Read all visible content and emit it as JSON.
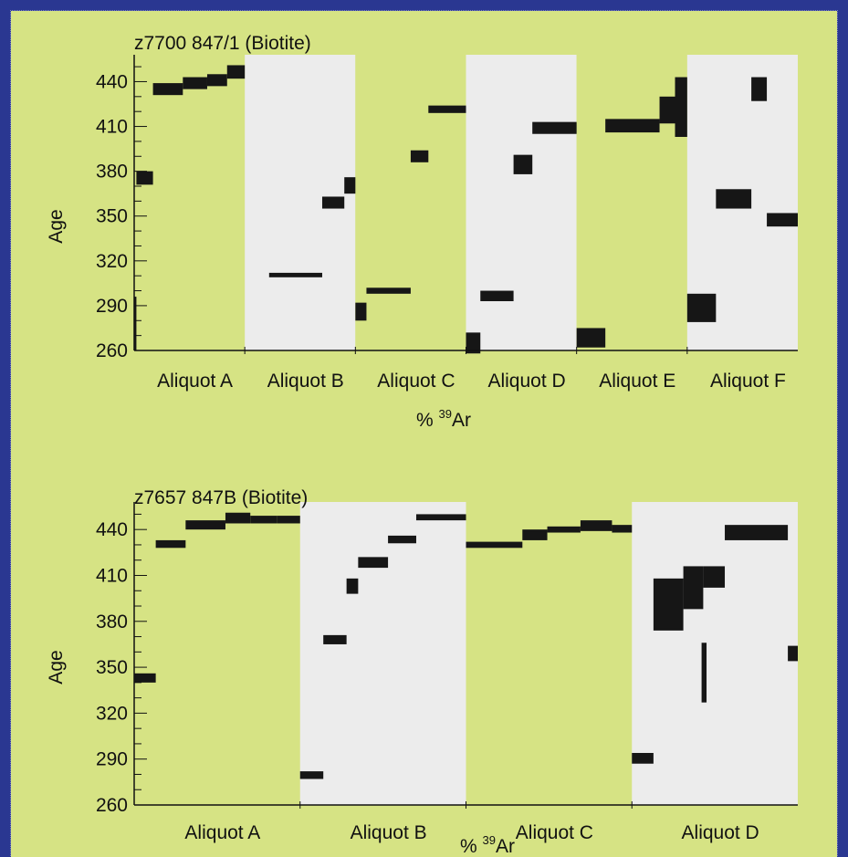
{
  "colors": {
    "border": "#2a3791",
    "background": "#d6e384",
    "band_light": "#ececec",
    "band_green": "#d6e384",
    "bar": "#161616"
  },
  "chart_data": [
    {
      "type": "step-heating age spectrum",
      "title": "z7700 847/1 (Biotite)",
      "ylabel": "Age",
      "xlabel_prefix": "% ",
      "xlabel_sup": "39",
      "xlabel_suffix": "Ar",
      "ylim": [
        260,
        458
      ],
      "yticks": [
        260,
        290,
        320,
        350,
        380,
        410,
        440
      ],
      "ytick_labels": [
        "260",
        "290",
        "320",
        "350",
        "380",
        "410",
        "440"
      ],
      "categories": [
        "Aliquot A",
        "Aliquot B",
        "Aliquot C",
        "Aliquot D",
        "Aliquot E",
        "Aliquot F"
      ],
      "category_labels": [
        "Aliquot A",
        "Aliquot B",
        "Aliquot C",
        "Aliquot D",
        "Aliquot E",
        "Aliquot F"
      ],
      "band_shading": [
        "green",
        "light",
        "green",
        "light",
        "green",
        "light"
      ],
      "steps": [
        {
          "aliquot": 0,
          "x0": 0.0,
          "x1": 0.02,
          "age_low": 260,
          "age_high": 296
        },
        {
          "aliquot": 0,
          "x0": 0.02,
          "x1": 0.17,
          "age_low": 371,
          "age_high": 380
        },
        {
          "aliquot": 0,
          "x0": 0.17,
          "x1": 0.44,
          "age_low": 431,
          "age_high": 439
        },
        {
          "aliquot": 0,
          "x0": 0.44,
          "x1": 0.66,
          "age_low": 435,
          "age_high": 443
        },
        {
          "aliquot": 0,
          "x0": 0.66,
          "x1": 0.84,
          "age_low": 437,
          "age_high": 445
        },
        {
          "aliquot": 0,
          "x0": 0.84,
          "x1": 1.0,
          "age_low": 442,
          "age_high": 451
        },
        {
          "aliquot": 1,
          "x0": 0.22,
          "x1": 0.7,
          "age_low": 309,
          "age_high": 312
        },
        {
          "aliquot": 1,
          "x0": 0.7,
          "x1": 0.9,
          "age_low": 355,
          "age_high": 363
        },
        {
          "aliquot": 1,
          "x0": 0.9,
          "x1": 1.0,
          "age_low": 365,
          "age_high": 376
        },
        {
          "aliquot": 2,
          "x0": 0.0,
          "x1": 0.1,
          "age_low": 280,
          "age_high": 292
        },
        {
          "aliquot": 2,
          "x0": 0.1,
          "x1": 0.5,
          "age_low": 298,
          "age_high": 302
        },
        {
          "aliquot": 2,
          "x0": 0.5,
          "x1": 0.66,
          "age_low": 386,
          "age_high": 394
        },
        {
          "aliquot": 2,
          "x0": 0.66,
          "x1": 1.0,
          "age_low": 419,
          "age_high": 424
        },
        {
          "aliquot": 3,
          "x0": 0.0,
          "x1": 0.13,
          "age_low": 258,
          "age_high": 272
        },
        {
          "aliquot": 3,
          "x0": 0.13,
          "x1": 0.43,
          "age_low": 293,
          "age_high": 300
        },
        {
          "aliquot": 3,
          "x0": 0.43,
          "x1": 0.6,
          "age_low": 378,
          "age_high": 391
        },
        {
          "aliquot": 3,
          "x0": 0.6,
          "x1": 1.0,
          "age_low": 405,
          "age_high": 413
        },
        {
          "aliquot": 4,
          "x0": 0.0,
          "x1": 0.26,
          "age_low": 262,
          "age_high": 275
        },
        {
          "aliquot": 4,
          "x0": 0.26,
          "x1": 0.75,
          "age_low": 406,
          "age_high": 415
        },
        {
          "aliquot": 4,
          "x0": 0.75,
          "x1": 0.89,
          "age_low": 412,
          "age_high": 430
        },
        {
          "aliquot": 4,
          "x0": 0.89,
          "x1": 1.0,
          "age_low": 403,
          "age_high": 443
        },
        {
          "aliquot": 5,
          "x0": 0.0,
          "x1": 0.26,
          "age_low": 279,
          "age_high": 298
        },
        {
          "aliquot": 5,
          "x0": 0.26,
          "x1": 0.58,
          "age_low": 355,
          "age_high": 368
        },
        {
          "aliquot": 5,
          "x0": 0.58,
          "x1": 0.72,
          "age_low": 427,
          "age_high": 443
        },
        {
          "aliquot": 5,
          "x0": 0.72,
          "x1": 1.0,
          "age_low": 343,
          "age_high": 352
        }
      ]
    },
    {
      "type": "step-heating age spectrum",
      "title": "z7657 847B (Biotite)",
      "ylabel": "Age",
      "xlabel_prefix": "% ",
      "xlabel_sup": "39",
      "xlabel_suffix": "Ar",
      "ylim": [
        260,
        458
      ],
      "yticks": [
        260,
        290,
        320,
        350,
        380,
        410,
        440
      ],
      "ytick_labels": [
        "260",
        "290",
        "320",
        "350",
        "380",
        "410",
        "440"
      ],
      "categories": [
        "Aliquot A",
        "Aliquot B",
        "Aliquot C",
        "Aliquot D"
      ],
      "category_labels": [
        "Aliquot A",
        "Aliquot B",
        "Aliquot C",
        "Aliquot D"
      ],
      "band_shading": [
        "green",
        "light",
        "green",
        "light"
      ],
      "steps": [
        {
          "aliquot": 0,
          "x0": 0.0,
          "x1": 0.13,
          "age_low": 340,
          "age_high": 346
        },
        {
          "aliquot": 0,
          "x0": 0.13,
          "x1": 0.31,
          "age_low": 428,
          "age_high": 433
        },
        {
          "aliquot": 0,
          "x0": 0.31,
          "x1": 0.55,
          "age_low": 440,
          "age_high": 446
        },
        {
          "aliquot": 0,
          "x0": 0.55,
          "x1": 0.7,
          "age_low": 444,
          "age_high": 451
        },
        {
          "aliquot": 0,
          "x0": 0.7,
          "x1": 0.86,
          "age_low": 444,
          "age_high": 449
        },
        {
          "aliquot": 0,
          "x0": 0.86,
          "x1": 1.0,
          "age_low": 444,
          "age_high": 449
        },
        {
          "aliquot": 1,
          "x0": 0.0,
          "x1": 0.14,
          "age_low": 277,
          "age_high": 282
        },
        {
          "aliquot": 1,
          "x0": 0.14,
          "x1": 0.28,
          "age_low": 365,
          "age_high": 371
        },
        {
          "aliquot": 1,
          "x0": 0.28,
          "x1": 0.35,
          "age_low": 398,
          "age_high": 408
        },
        {
          "aliquot": 1,
          "x0": 0.35,
          "x1": 0.53,
          "age_low": 415,
          "age_high": 422
        },
        {
          "aliquot": 1,
          "x0": 0.53,
          "x1": 0.7,
          "age_low": 431,
          "age_high": 436
        },
        {
          "aliquot": 1,
          "x0": 0.7,
          "x1": 1.0,
          "age_low": 446,
          "age_high": 450
        },
        {
          "aliquot": 2,
          "x0": 0.0,
          "x1": 0.34,
          "age_low": 428,
          "age_high": 432
        },
        {
          "aliquot": 2,
          "x0": 0.34,
          "x1": 0.49,
          "age_low": 433,
          "age_high": 440
        },
        {
          "aliquot": 2,
          "x0": 0.49,
          "x1": 0.69,
          "age_low": 438,
          "age_high": 442
        },
        {
          "aliquot": 2,
          "x0": 0.69,
          "x1": 0.88,
          "age_low": 439,
          "age_high": 446
        },
        {
          "aliquot": 2,
          "x0": 0.88,
          "x1": 1.0,
          "age_low": 438,
          "age_high": 443
        },
        {
          "aliquot": 3,
          "x0": 0.0,
          "x1": 0.13,
          "age_low": 287,
          "age_high": 294
        },
        {
          "aliquot": 3,
          "x0": 0.13,
          "x1": 0.31,
          "age_low": 374,
          "age_high": 408
        },
        {
          "aliquot": 3,
          "x0": 0.31,
          "x1": 0.43,
          "age_low": 388,
          "age_high": 416
        },
        {
          "aliquot": 3,
          "x0": 0.43,
          "x1": 0.56,
          "age_low": 402,
          "age_high": 416
        },
        {
          "aliquot": 3,
          "x0": 0.42,
          "x1": 0.45,
          "age_low": 327,
          "age_high": 366
        },
        {
          "aliquot": 3,
          "x0": 0.56,
          "x1": 0.94,
          "age_low": 433,
          "age_high": 443
        },
        {
          "aliquot": 3,
          "x0": 0.94,
          "x1": 1.0,
          "age_low": 354,
          "age_high": 364
        }
      ]
    }
  ]
}
